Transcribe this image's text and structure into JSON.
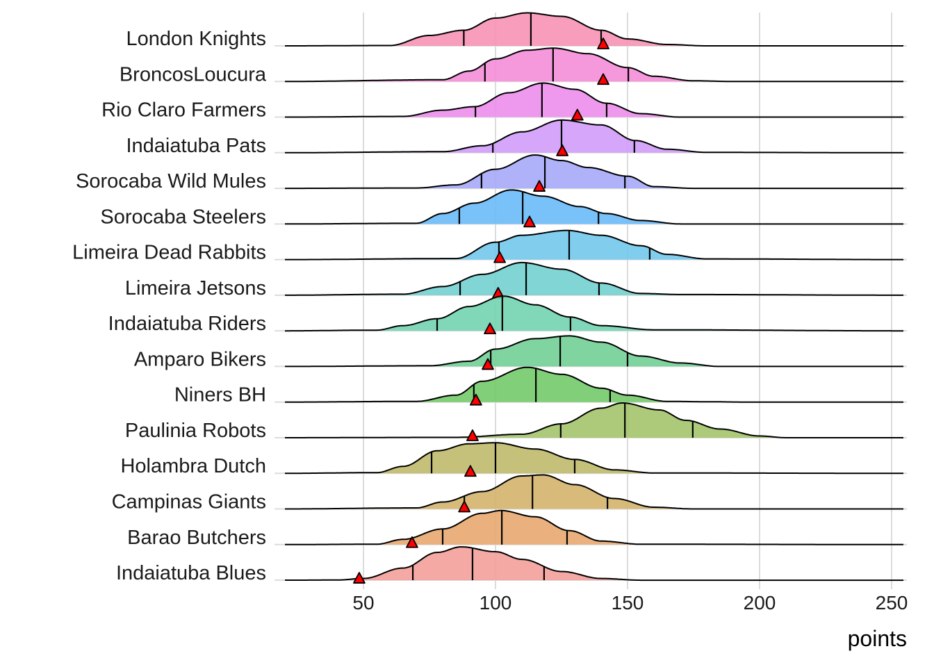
{
  "chart_data": {
    "type": "ridgeline",
    "xlabel": "points",
    "ylabel": "",
    "xlim": [
      20,
      255
    ],
    "xticks": [
      50,
      100,
      150,
      200,
      250
    ],
    "grid": true,
    "marker_legend": "red triangle per team",
    "series": [
      {
        "name": "London Knights",
        "color": "#F792B4",
        "quartiles": [
          88,
          113.4,
          140
        ],
        "marker": 140.8,
        "density": [
          [
            20,
            0
          ],
          [
            60,
            0.01
          ],
          [
            75,
            0.3
          ],
          [
            88,
            0.45
          ],
          [
            100,
            0.8
          ],
          [
            112,
            0.95
          ],
          [
            125,
            0.85
          ],
          [
            140,
            0.45
          ],
          [
            150,
            0.2
          ],
          [
            165,
            0.04
          ],
          [
            180,
            0
          ],
          [
            255,
            0
          ]
        ]
      },
      {
        "name": "BroncosLoucura",
        "color": "#F58ED8",
        "quartiles": [
          96,
          121.8,
          150.3
        ],
        "marker": 140.8,
        "density": [
          [
            20,
            0
          ],
          [
            80,
            0.05
          ],
          [
            90,
            0.3
          ],
          [
            100,
            0.65
          ],
          [
            112,
            0.9
          ],
          [
            122,
            0.96
          ],
          [
            135,
            0.8
          ],
          [
            150,
            0.4
          ],
          [
            160,
            0.15
          ],
          [
            175,
            0.02
          ],
          [
            190,
            0
          ],
          [
            255,
            0
          ]
        ]
      },
      {
        "name": "Rio Claro Farmers",
        "color": "#EC8EEC",
        "quartiles": [
          92.4,
          117.6,
          142.1
        ],
        "marker": 131,
        "density": [
          [
            20,
            0
          ],
          [
            65,
            0.02
          ],
          [
            80,
            0.2
          ],
          [
            92,
            0.3
          ],
          [
            105,
            0.7
          ],
          [
            118,
            0.98
          ],
          [
            130,
            0.8
          ],
          [
            142,
            0.4
          ],
          [
            155,
            0.1
          ],
          [
            170,
            0
          ],
          [
            255,
            0
          ]
        ]
      },
      {
        "name": "Indaiatuba Pats",
        "color": "#D09CF8",
        "quartiles": [
          99,
          125,
          152.6
        ],
        "marker": 125.3,
        "density": [
          [
            20,
            0
          ],
          [
            80,
            0.03
          ],
          [
            95,
            0.2
          ],
          [
            110,
            0.6
          ],
          [
            125,
            0.94
          ],
          [
            140,
            0.8
          ],
          [
            153,
            0.35
          ],
          [
            165,
            0.1
          ],
          [
            180,
            0.01
          ],
          [
            255,
            0
          ]
        ]
      },
      {
        "name": "Sorocaba Wild Mules",
        "color": "#A6AAF8",
        "quartiles": [
          94.7,
          118.7,
          149
        ],
        "marker": 116.6,
        "density": [
          [
            20,
            0
          ],
          [
            70,
            0.01
          ],
          [
            85,
            0.1
          ],
          [
            100,
            0.55
          ],
          [
            115,
            0.96
          ],
          [
            125,
            0.8
          ],
          [
            135,
            0.6
          ],
          [
            150,
            0.35
          ],
          [
            160,
            0.05
          ],
          [
            175,
            0
          ],
          [
            255,
            0
          ]
        ]
      },
      {
        "name": "Sorocaba Steelers",
        "color": "#6ABAF8",
        "quartiles": [
          86.3,
          110.3,
          139
        ],
        "marker": 112.9,
        "density": [
          [
            20,
            0
          ],
          [
            70,
            0.02
          ],
          [
            80,
            0.3
          ],
          [
            92,
            0.6
          ],
          [
            106,
            0.98
          ],
          [
            118,
            0.8
          ],
          [
            132,
            0.5
          ],
          [
            142,
            0.3
          ],
          [
            155,
            0.1
          ],
          [
            170,
            0
          ],
          [
            255,
            0
          ]
        ]
      },
      {
        "name": "Limeira Dead Rabbits",
        "color": "#72C8EC",
        "quartiles": [
          101.3,
          127.9,
          158.4
        ],
        "marker": 101.6,
        "density": [
          [
            20,
            0
          ],
          [
            85,
            0.03
          ],
          [
            100,
            0.5
          ],
          [
            110,
            0.7
          ],
          [
            127,
            0.84
          ],
          [
            140,
            0.7
          ],
          [
            155,
            0.4
          ],
          [
            165,
            0.15
          ],
          [
            180,
            0.02
          ],
          [
            255,
            0
          ]
        ]
      },
      {
        "name": "Limeira Jetsons",
        "color": "#74D0D0",
        "quartiles": [
          86.6,
          111.6,
          139.2
        ],
        "marker": 101,
        "density": [
          [
            20,
            0
          ],
          [
            65,
            0.03
          ],
          [
            80,
            0.25
          ],
          [
            95,
            0.6
          ],
          [
            110,
            0.94
          ],
          [
            125,
            0.75
          ],
          [
            140,
            0.35
          ],
          [
            155,
            0.05
          ],
          [
            170,
            0.02
          ],
          [
            255,
            0
          ]
        ]
      },
      {
        "name": "Indaiatuba Riders",
        "color": "#72D4B0",
        "quartiles": [
          77.9,
          102.6,
          128.4
        ],
        "marker": 97.9,
        "density": [
          [
            20,
            0
          ],
          [
            55,
            0.02
          ],
          [
            65,
            0.15
          ],
          [
            78,
            0.35
          ],
          [
            90,
            0.7
          ],
          [
            103,
            1.0
          ],
          [
            115,
            0.75
          ],
          [
            128,
            0.4
          ],
          [
            140,
            0.15
          ],
          [
            160,
            0.03
          ],
          [
            255,
            0
          ]
        ]
      },
      {
        "name": "Amparo Bikers",
        "color": "#72CF96",
        "quartiles": [
          98.2,
          124.5,
          150
        ],
        "marker": 97.1,
        "density": [
          [
            20,
            0
          ],
          [
            75,
            0.02
          ],
          [
            90,
            0.15
          ],
          [
            100,
            0.5
          ],
          [
            115,
            0.8
          ],
          [
            128,
            0.88
          ],
          [
            140,
            0.7
          ],
          [
            155,
            0.3
          ],
          [
            170,
            0.1
          ],
          [
            185,
            0
          ],
          [
            255,
            0
          ]
        ]
      },
      {
        "name": "Niners BH",
        "color": "#74CA6A",
        "quartiles": [
          91.8,
          115.3,
          143.4
        ],
        "marker": 92.6,
        "density": [
          [
            20,
            0
          ],
          [
            70,
            0.02
          ],
          [
            85,
            0.2
          ],
          [
            95,
            0.6
          ],
          [
            112,
            1.0
          ],
          [
            125,
            0.8
          ],
          [
            140,
            0.4
          ],
          [
            150,
            0.2
          ],
          [
            165,
            0.02
          ],
          [
            180,
            0.01
          ],
          [
            195,
            0
          ],
          [
            255,
            0
          ]
        ]
      },
      {
        "name": "Paulinia Robots",
        "color": "#A3C46A",
        "quartiles": [
          124.7,
          149,
          174.7
        ],
        "marker": 91.3,
        "density": [
          [
            20,
            0
          ],
          [
            85,
            0.01
          ],
          [
            110,
            0.1
          ],
          [
            125,
            0.4
          ],
          [
            140,
            0.85
          ],
          [
            148,
            1.0
          ],
          [
            162,
            0.8
          ],
          [
            172,
            0.5
          ],
          [
            185,
            0.25
          ],
          [
            200,
            0.05
          ],
          [
            210,
            0
          ],
          [
            255,
            0
          ]
        ]
      },
      {
        "name": "Holambra Dutch",
        "color": "#C0BA6C",
        "quartiles": [
          75.8,
          100,
          130
        ],
        "marker": 90.5,
        "density": [
          [
            20,
            0
          ],
          [
            55,
            0.02
          ],
          [
            65,
            0.2
          ],
          [
            78,
            0.65
          ],
          [
            90,
            0.85
          ],
          [
            100,
            0.88
          ],
          [
            115,
            0.7
          ],
          [
            130,
            0.4
          ],
          [
            145,
            0.1
          ],
          [
            160,
            0.01
          ],
          [
            255,
            0
          ]
        ]
      },
      {
        "name": "Campinas Giants",
        "color": "#D4B46C",
        "quartiles": [
          88.2,
          114,
          142.4
        ],
        "marker": 88.2,
        "density": [
          [
            20,
            0
          ],
          [
            70,
            0.03
          ],
          [
            80,
            0.2
          ],
          [
            95,
            0.5
          ],
          [
            110,
            0.95
          ],
          [
            118,
            0.98
          ],
          [
            130,
            0.7
          ],
          [
            145,
            0.3
          ],
          [
            160,
            0.05
          ],
          [
            175,
            0
          ],
          [
            255,
            0
          ]
        ]
      },
      {
        "name": "Barao Butchers",
        "color": "#E8A870",
        "quartiles": [
          80,
          102.4,
          127.1
        ],
        "marker": 68.4,
        "density": [
          [
            20,
            0
          ],
          [
            55,
            0.01
          ],
          [
            65,
            0.15
          ],
          [
            80,
            0.45
          ],
          [
            95,
            0.9
          ],
          [
            102,
            0.98
          ],
          [
            115,
            0.8
          ],
          [
            128,
            0.4
          ],
          [
            140,
            0.1
          ],
          [
            155,
            0.01
          ],
          [
            255,
            0
          ]
        ]
      },
      {
        "name": "Indaiatuba Blues",
        "color": "#F4A09A",
        "quartiles": [
          68.7,
          91.3,
          118.4
        ],
        "marker": 48.4,
        "density": [
          [
            20,
            0
          ],
          [
            40,
            0.005
          ],
          [
            50,
            0.05
          ],
          [
            65,
            0.35
          ],
          [
            78,
            0.8
          ],
          [
            87,
            0.96
          ],
          [
            100,
            0.82
          ],
          [
            110,
            0.6
          ],
          [
            125,
            0.25
          ],
          [
            140,
            0.05
          ],
          [
            155,
            0
          ],
          [
            255,
            0
          ]
        ]
      }
    ]
  }
}
